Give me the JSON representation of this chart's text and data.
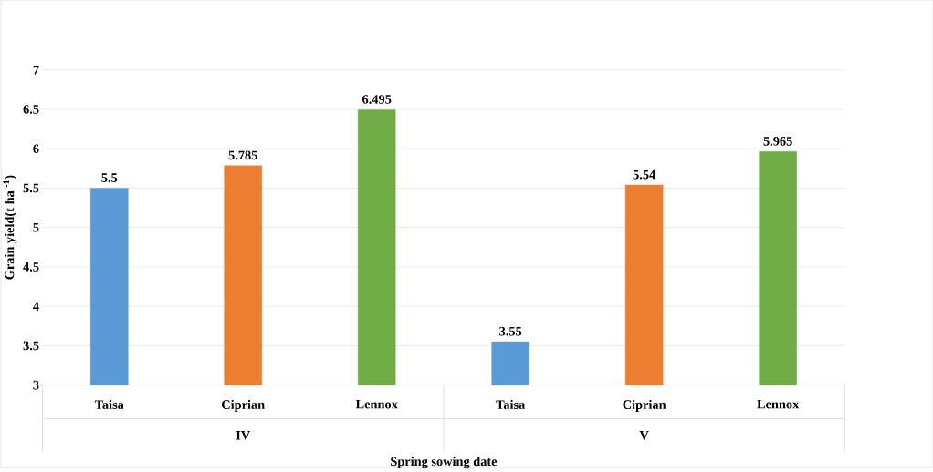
{
  "chart_data": {
    "type": "bar",
    "xlabel": "Spring sowing date",
    "ylabel": "Grain yield(t ha $^{-1}$)",
    "categories": [
      "Taisa",
      "Ciprian",
      "Lennox",
      "Taisa",
      "Ciprian",
      "Lennox"
    ],
    "values": [
      5.5,
      5.785,
      6.495,
      3.55,
      5.54,
      5.965
    ],
    "colors": [
      "#5b9bd5",
      "#ed7d31",
      "#70ad47",
      "#5b9bd5",
      "#ed7d31",
      "#70ad47"
    ],
    "annotations": [
      "IV",
      "V"
    ],
    "ylim": [
      3,
      7
    ],
    "yticks": [
      3,
      3.5,
      4,
      4.5,
      5,
      5.5,
      6,
      6.5,
      7
    ],
    "grid": "y",
    "data_labels": true
  }
}
